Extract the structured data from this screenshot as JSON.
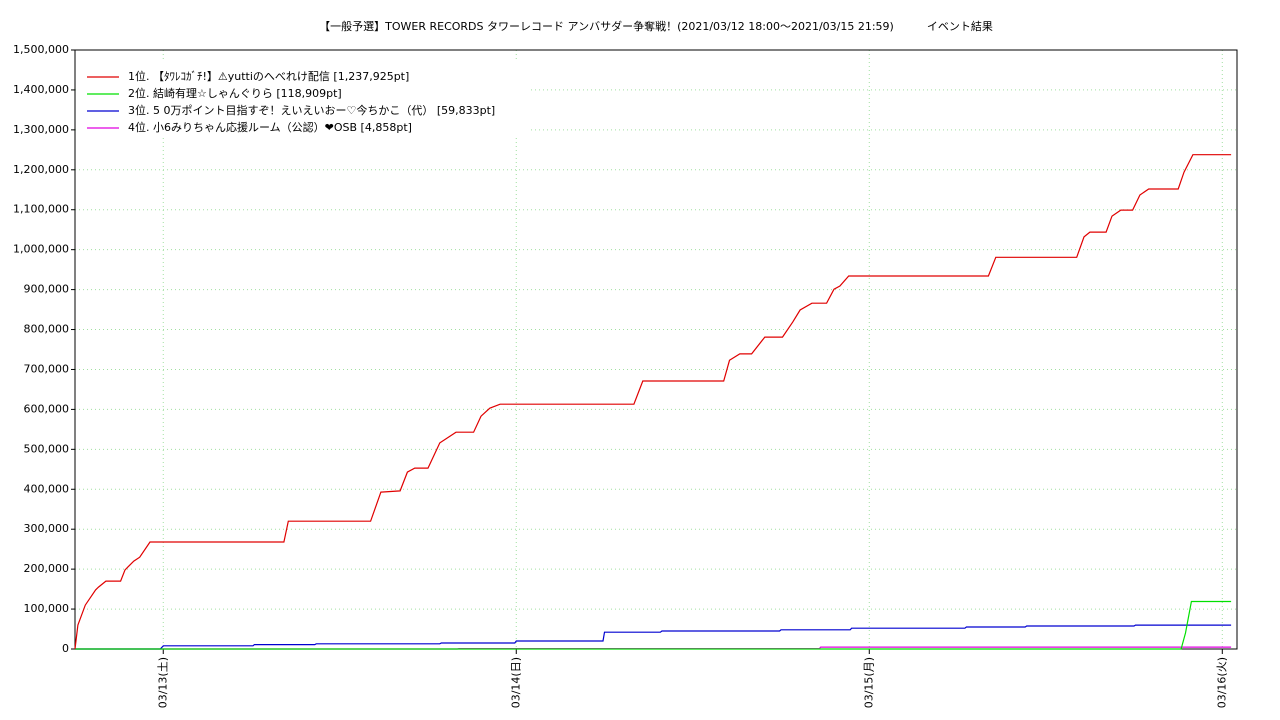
{
  "chart_data": {
    "type": "line",
    "title": "【一般予選】TOWER RECORDS タワーレコード アンバサダー争奪戦！(2021/03/12 18:00～2021/03/15 21:59)　　　イベント結果",
    "xlim": [
      -6,
      73
    ],
    "ylim": [
      0,
      1500000
    ],
    "xticks": [
      {
        "value": 0,
        "label": "03/13(土)"
      },
      {
        "value": 24,
        "label": "03/14(日)"
      },
      {
        "value": 48,
        "label": "03/15(月)"
      },
      {
        "value": 72,
        "label": "03/16(火)"
      }
    ],
    "yticks": [
      0,
      {
        "value": 100000,
        "label": "100,000"
      },
      {
        "value": 200000,
        "label": "200,000"
      },
      {
        "value": 300000,
        "label": "300,000"
      },
      {
        "value": 400000,
        "label": "400,000"
      },
      {
        "value": 500000,
        "label": "500,000"
      },
      {
        "value": 600000,
        "label": "600,000"
      },
      {
        "value": 700000,
        "label": "700,000"
      },
      {
        "value": 800000,
        "label": "800,000"
      },
      {
        "value": 900000,
        "label": "900,000"
      },
      {
        "value": 1000000,
        "label": "1,000,000"
      },
      {
        "value": 1100000,
        "label": "1,100,000"
      },
      {
        "value": 1200000,
        "label": "1,200,000"
      },
      {
        "value": 1300000,
        "label": "1,300,000"
      },
      {
        "value": 1400000,
        "label": "1,400,000"
      },
      {
        "value": 1500000,
        "label": "1,500,000"
      }
    ],
    "grid": true,
    "legend": "upper left",
    "series": [
      {
        "name": "1位. 【ﾀﾜﾚｺｶﾞﾁ!】⚠yuttiのへべれけ配信 [1,237,925pt]",
        "color": "#e00000",
        "x": [
          -6,
          -5.8,
          -5.3,
          -4.6,
          -4.4,
          -3.9,
          -2.9,
          -2.6,
          -2.0,
          -1.6,
          -0.9,
          8.2,
          8.5,
          14.1,
          14.8,
          16.1,
          16.6,
          17.1,
          18.0,
          18.8,
          19.9,
          21.1,
          21.6,
          22.2,
          22.9,
          32.0,
          32.6,
          38.1,
          38.5,
          39.2,
          40.0,
          40.9,
          42.1,
          42.8,
          43.3,
          44.1,
          45.1,
          45.6,
          46.0,
          46.6,
          56.1,
          56.6,
          62.1,
          62.6,
          63.0,
          64.1,
          64.5,
          65.1,
          65.9,
          66.4,
          67.0,
          69.0,
          69.4,
          70.0,
          72.6
        ],
        "values": [
          0,
          60000,
          110000,
          148000,
          155000,
          170000,
          170000,
          198000,
          220000,
          230000,
          268000,
          268000,
          320000,
          320000,
          393000,
          396000,
          443000,
          453000,
          453000,
          516000,
          543000,
          543000,
          583000,
          603000,
          613000,
          613000,
          671000,
          671000,
          723000,
          739000,
          739000,
          781000,
          781000,
          819000,
          849000,
          866000,
          866000,
          901000,
          909000,
          934000,
          934000,
          981000,
          981000,
          1032000,
          1044000,
          1044000,
          1084000,
          1099000,
          1099000,
          1137000,
          1152000,
          1152000,
          1194000,
          1237925,
          1237925
        ]
      },
      {
        "name": "2位. 結崎有理☆しゃんぐりら [118,909pt]",
        "color": "#00e000",
        "x": [
          -6,
          69.2,
          69.5,
          69.9,
          72.6
        ],
        "values": [
          0,
          0,
          40000,
          118909,
          118909
        ]
      },
      {
        "name": "3位. 5 0万ポイント目指すぞ！えいえいおー♡今ちかこ（代） [59,833pt]",
        "color": "#0000d0",
        "x": [
          -6,
          -0.2,
          0.0,
          6.1,
          6.2,
          10.3,
          10.4,
          18.8,
          18.9,
          23.9,
          24.0,
          29.9,
          30.0,
          33.8,
          33.9,
          41.9,
          42.0,
          46.7,
          46.8,
          54.5,
          54.6,
          58.6,
          58.7,
          66.0,
          66.1,
          72.6
        ],
        "values": [
          0,
          0,
          8000,
          8000,
          11000,
          11000,
          13000,
          13000,
          15000,
          15000,
          20000,
          20000,
          42000,
          42000,
          45000,
          45000,
          48000,
          48000,
          52000,
          52000,
          55000,
          55000,
          57500,
          57500,
          59833,
          59833
        ]
      },
      {
        "name": "4位. 小6みりちゃん応援ルーム（公認）❤OSB [4,858pt]",
        "color": "#e000e0",
        "x": [
          -6,
          20.0,
          20.1,
          44.6,
          44.7,
          72.6
        ],
        "values": [
          0,
          0,
          1000,
          1000,
          4858,
          4858
        ]
      }
    ]
  }
}
